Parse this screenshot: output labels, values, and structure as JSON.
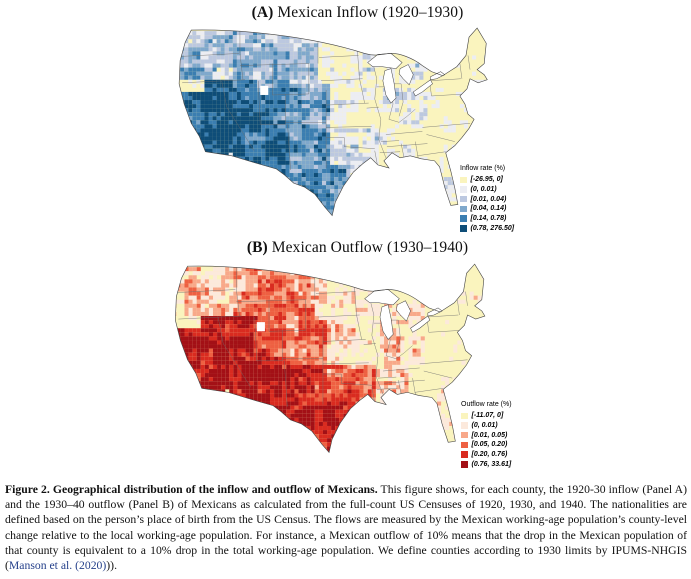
{
  "figure": {
    "background": "#ffffff",
    "link_color": "#26418B",
    "map_base_color": "#FAF4BE",
    "border_color": "#444444"
  },
  "panel_a": {
    "title_prefix": "(A)",
    "title_rest": " Mexican Inflow (1920–1930)",
    "legend": {
      "title": "Inflow rate (%)",
      "items": [
        {
          "label": "[-26.95, 0]",
          "color": "#FAF4BE"
        },
        {
          "label": "(0, 0.01)",
          "color": "#ECEDF3"
        },
        {
          "label": "[0.01, 0.04)",
          "color": "#BCC8E0"
        },
        {
          "label": "[0.04, 0.14)",
          "color": "#7FA8CC"
        },
        {
          "label": "[0.14, 0.78)",
          "color": "#3B7EB1"
        },
        {
          "label": "(0.78, 276.50]",
          "color": "#0E4D78"
        }
      ]
    }
  },
  "panel_b": {
    "title_prefix": "(B)",
    "title_rest": " Mexican Outflow (1930–1940)",
    "legend": {
      "title": "Outflow rate (%)",
      "items": [
        {
          "label": "[-11.07, 0]",
          "color": "#FAF4BE"
        },
        {
          "label": "(0, 0.01)",
          "color": "#FCE9DC"
        },
        {
          "label": "[0.01, 0.05)",
          "color": "#F8A88A"
        },
        {
          "label": "[0.05, 0.20)",
          "color": "#EE6042"
        },
        {
          "label": "[0.20, 0.76)",
          "color": "#D92B20"
        },
        {
          "label": "(0.76, 33.61]",
          "color": "#A31016"
        }
      ]
    }
  },
  "caption": {
    "bold": "Figure 2. Geographical distribution of the inflow and outflow of Mexicans.",
    "body": " This figure shows, for each county, the 1920-30 inflow (Panel A) and the 1930–40 outflow (Panel B) of Mexicans as calculated from the full-count US Censuses of 1920, 1930, and 1940. The nationalities are defined based on the person’s place of birth from the US Census. The flows are measured by the Mexican working-age population’s county-level change relative to the local working-age population. For instance, a Mexican outflow of 10% means that the drop in the Mexican population of that county is equivalent to a 10% drop in the total working-age population. We define counties according to 1930 limits by IPUMS-NHGIS (",
    "link": "Manson et al. (2020)",
    "tail": "))."
  },
  "chart_data": {
    "type": "heatmap",
    "subtype": "choropleth-usa-counties",
    "panels": [
      {
        "title": "(A) Mexican Inflow (1920–1930)",
        "legend_title": "Inflow rate (%)",
        "bins": [
          "[-26.95, 0]",
          "(0, 0.01)",
          "[0.01, 0.04)",
          "[0.04, 0.14)",
          "[0.14, 0.78)",
          "(0.78, 276.50]"
        ],
        "bin_colors": [
          "#FAF4BE",
          "#ECEDF3",
          "#BCC8E0",
          "#7FA8CC",
          "#3B7EB1",
          "#0E4D78"
        ],
        "high_regions": "California, Nevada, Arizona, New Mexico, Colorado, Utah, central and south Texas, scattered Pacific Northwest and Midwest"
      },
      {
        "title": "(B) Mexican Outflow (1930–1940)",
        "legend_title": "Outflow rate (%)",
        "bins": [
          "[-11.07, 0]",
          "(0, 0.01)",
          "[0.01, 0.05)",
          "[0.05, 0.20)",
          "[0.20, 0.76)",
          "(0.76, 33.61]"
        ],
        "bin_colors": [
          "#FAF4BE",
          "#FCE9DC",
          "#F8A88A",
          "#EE6042",
          "#D92B20",
          "#A31016"
        ],
        "high_regions": "California, Nevada, Arizona, New Mexico, all of Texas, Oklahoma, Kansas, scattered Mountain West and Midwest"
      }
    ],
    "legend_position": "inside lower-right of each map"
  }
}
